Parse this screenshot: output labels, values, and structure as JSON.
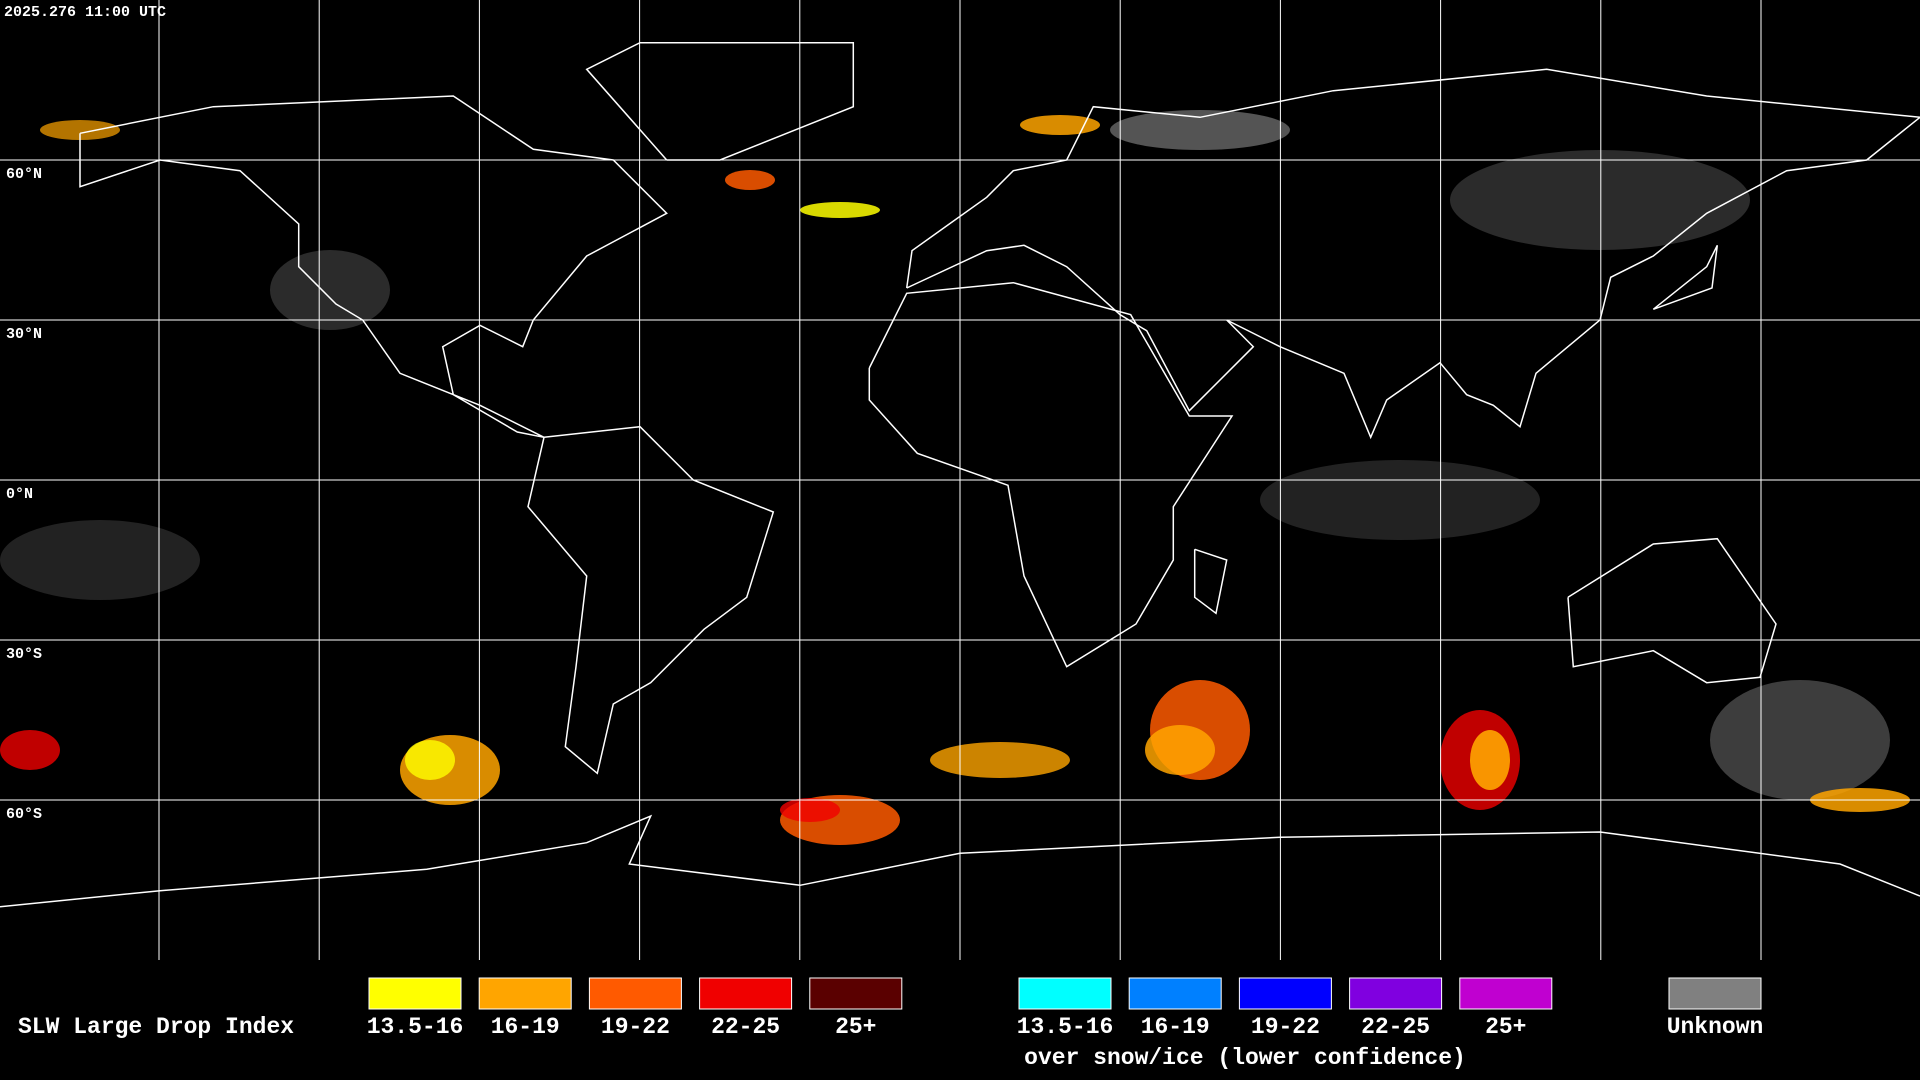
{
  "header": {
    "timestamp": "2025.276 11:00 UTC"
  },
  "grid": {
    "lat_labels": [
      "60°N",
      "30°N",
      "0°N",
      "30°S",
      "60°S"
    ]
  },
  "legend": {
    "title": "SLW Large Drop Index",
    "groups": [
      {
        "items": [
          {
            "label": "13.5-16",
            "color": "#ffff00"
          },
          {
            "label": "16-19",
            "color": "#ffa500"
          },
          {
            "label": "19-22",
            "color": "#ff5a00"
          },
          {
            "label": "22-25",
            "color": "#f00000"
          },
          {
            "label": "25+",
            "color": "#5a0000"
          }
        ]
      },
      {
        "note": "over snow/ice (lower confidence)",
        "items": [
          {
            "label": "13.5-16",
            "color": "#00ffff"
          },
          {
            "label": "16-19",
            "color": "#0080ff"
          },
          {
            "label": "19-22",
            "color": "#0000ff"
          },
          {
            "label": "22-25",
            "color": "#8000e0"
          },
          {
            "label": "25+",
            "color": "#c000d0"
          }
        ]
      },
      {
        "items": [
          {
            "label": "Unknown",
            "color": "#808080"
          }
        ]
      }
    ]
  }
}
